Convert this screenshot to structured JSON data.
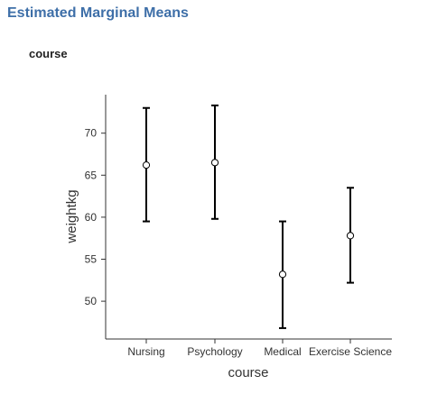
{
  "page": {
    "title": "Estimated Marginal Means",
    "section_title": "course"
  },
  "chart_data": {
    "type": "errorbar",
    "xlabel": "course",
    "ylabel": "weightkg",
    "categories": [
      "Nursing",
      "Psychology",
      "Medical",
      "Exercise Science"
    ],
    "means": [
      66.2,
      66.5,
      53.2,
      57.8
    ],
    "lower": [
      59.5,
      59.8,
      46.8,
      52.2
    ],
    "upper": [
      73.0,
      73.3,
      59.5,
      63.5
    ],
    "yticks": [
      50,
      55,
      60,
      65,
      70
    ],
    "ylim": [
      45,
      75
    ],
    "grid": false,
    "legend": "none",
    "colors": {
      "line": "#000000",
      "point_fill": "#ffffff",
      "axis": "#333333"
    }
  }
}
